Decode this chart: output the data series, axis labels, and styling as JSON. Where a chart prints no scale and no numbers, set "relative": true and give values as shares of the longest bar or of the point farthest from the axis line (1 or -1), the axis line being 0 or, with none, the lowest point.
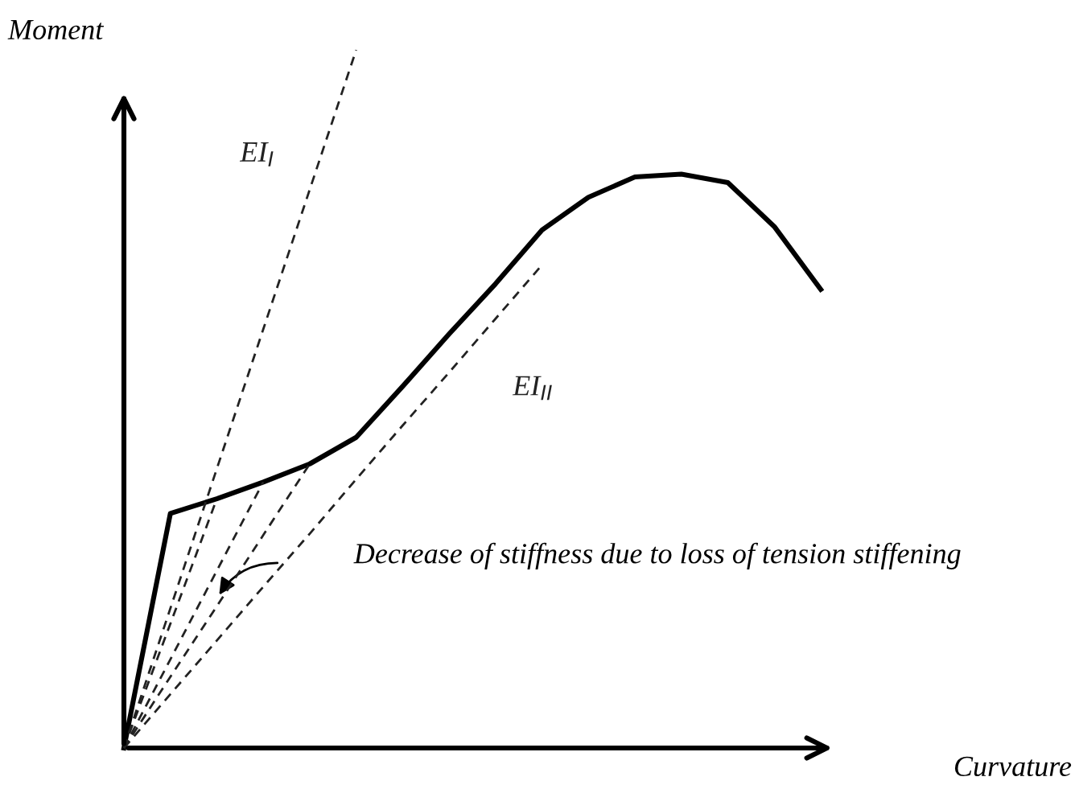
{
  "chart_data": {
    "type": "line",
    "relative": true,
    "xlabel": "Curvature",
    "ylabel": "Moment",
    "marker": "none",
    "categories": [
      null,
      null,
      null,
      null,
      null,
      null,
      null,
      null,
      null,
      null,
      null,
      null,
      null,
      null,
      null,
      null
    ],
    "annotations": [
      "Decrease of stiffness due to loss of tension stiffening"
    ],
    "series": [
      {
        "values": [
          0,
          0.336,
          0.357,
          0.381,
          0.407,
          0.445,
          0.518,
          0.593,
          0.665,
          0.742,
          0.789,
          0.818,
          0.822,
          0.81,
          0.747,
          0.657
        ],
        "color": "#000000",
        "line_style": "solid"
      },
      {
        "name": "EI$_{I}$",
        "values": [
          0,
          0.2,
          0.4,
          0.6,
          0.8,
          1.0,
          null,
          null,
          null,
          null,
          null,
          null,
          null,
          null,
          null,
          null
        ],
        "color": "#222222",
        "line_style": "dashed"
      },
      {
        "name": "EI$_{II}$",
        "values": [
          0,
          0.077,
          0.154,
          0.231,
          0.307,
          0.385,
          0.462,
          0.538,
          0.615,
          0.692,
          null,
          null,
          null,
          null,
          null,
          null
        ],
        "color": "#222222",
        "line_style": "dashed"
      },
      {
        "values": [
          0,
          0.178,
          0.357,
          null,
          null,
          null,
          null,
          null,
          null,
          null,
          null,
          null,
          null,
          null,
          null,
          null
        ],
        "color": "#222222",
        "line_style": "dashed"
      },
      {
        "values": [
          0,
          0.127,
          0.254,
          0.381,
          null,
          null,
          null,
          null,
          null,
          null,
          null,
          null,
          null,
          null,
          null,
          null
        ],
        "color": "#222222",
        "line_style": "dashed"
      },
      {
        "values": [
          0,
          0.102,
          0.203,
          0.305,
          0.407,
          null,
          null,
          null,
          null,
          null,
          null,
          null,
          null,
          null,
          null,
          null
        ],
        "color": "#222222",
        "line_style": "dashed"
      }
    ]
  }
}
